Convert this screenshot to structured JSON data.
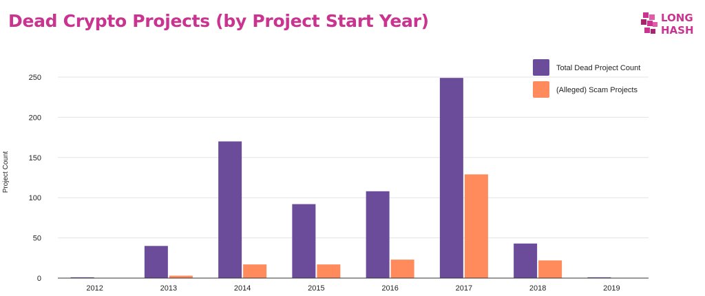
{
  "chart_data": {
    "type": "bar",
    "title": "Dead Crypto Projects (by Project Start Year)",
    "ylabel": "Project Count",
    "xlabel": "",
    "categories": [
      "2012",
      "2013",
      "2014",
      "2015",
      "2016",
      "2017",
      "2018",
      "2019"
    ],
    "series": [
      {
        "name": "Total Dead Project Count",
        "color": "#6b4c9a",
        "values": [
          1,
          40,
          170,
          92,
          108,
          249,
          43,
          1
        ]
      },
      {
        "name": "(Alleged) Scam Projects",
        "color": "#ff8a5c",
        "values": [
          0,
          3,
          17,
          17,
          23,
          129,
          22,
          0
        ]
      }
    ],
    "ylim": [
      0,
      250
    ],
    "yticks": [
      0,
      50,
      100,
      150,
      200,
      250
    ],
    "grid": true,
    "legend": "top-right"
  },
  "logo": {
    "line1": "LONG",
    "line2": "HASH",
    "color": "#c8348f",
    "icon": "longhash-logo-icon"
  }
}
